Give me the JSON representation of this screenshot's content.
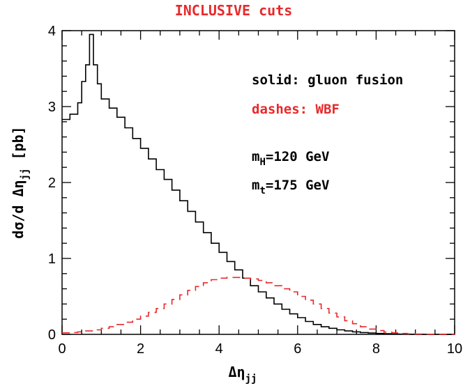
{
  "chart_data": {
    "type": "line",
    "title": "INCLUSIVE cuts",
    "title_color": "#e8292b",
    "xlabel": "Δη",
    "xlabel_sub": "jj",
    "ylabel_pre": "dσ/d Δη",
    "ylabel_sub": "jj",
    "ylabel_post": " [pb]",
    "xlim": [
      0,
      10
    ],
    "ylim": [
      0,
      4
    ],
    "xticks": [
      "0",
      "2",
      "4",
      "6",
      "8",
      "10"
    ],
    "yticks": [
      "0",
      "1",
      "2",
      "3",
      "4"
    ],
    "grid": false,
    "series": [
      {
        "name": "gluon fusion",
        "color": "#000000",
        "style": "solid-histogram",
        "x": [
          0.0,
          0.2,
          0.4,
          0.5,
          0.6,
          0.7,
          0.8,
          0.9,
          1.0,
          1.2,
          1.4,
          1.6,
          1.8,
          2.0,
          2.2,
          2.4,
          2.6,
          2.8,
          3.0,
          3.2,
          3.4,
          3.6,
          3.8,
          4.0,
          4.2,
          4.4,
          4.6,
          4.8,
          5.0,
          5.2,
          5.4,
          5.6,
          5.8,
          6.0,
          6.2,
          6.4,
          6.6,
          6.8,
          7.0,
          7.2,
          7.4,
          7.6,
          7.8,
          8.0,
          8.2,
          8.4,
          8.6,
          8.8,
          9.0,
          9.2,
          9.4,
          9.6,
          9.8,
          10.0
        ],
        "y": [
          2.83,
          2.9,
          3.05,
          3.33,
          3.55,
          3.95,
          3.55,
          3.3,
          3.1,
          2.98,
          2.86,
          2.72,
          2.58,
          2.45,
          2.31,
          2.17,
          2.04,
          1.9,
          1.76,
          1.62,
          1.48,
          1.34,
          1.2,
          1.08,
          0.96,
          0.85,
          0.74,
          0.64,
          0.56,
          0.48,
          0.4,
          0.33,
          0.27,
          0.22,
          0.17,
          0.13,
          0.1,
          0.08,
          0.06,
          0.045,
          0.033,
          0.024,
          0.017,
          0.012,
          0.008,
          0.005,
          0.003,
          0.002,
          0.001,
          0.0,
          0.0,
          0.0,
          0.0,
          0.0
        ]
      },
      {
        "name": "WBF",
        "color": "#e8292b",
        "style": "dashed-histogram",
        "x": [
          0.0,
          0.2,
          0.4,
          0.6,
          0.8,
          1.0,
          1.2,
          1.4,
          1.6,
          1.8,
          2.0,
          2.2,
          2.4,
          2.6,
          2.8,
          3.0,
          3.2,
          3.4,
          3.6,
          3.8,
          4.0,
          4.2,
          4.4,
          4.6,
          4.8,
          5.0,
          5.2,
          5.4,
          5.6,
          5.8,
          6.0,
          6.2,
          6.4,
          6.6,
          6.8,
          7.0,
          7.2,
          7.4,
          7.6,
          7.8,
          8.0,
          8.2,
          8.4,
          8.6,
          8.8,
          9.0,
          9.2,
          9.4,
          9.6,
          9.8,
          10.0
        ],
        "y": [
          0.02,
          0.025,
          0.033,
          0.045,
          0.06,
          0.08,
          0.1,
          0.13,
          0.16,
          0.2,
          0.24,
          0.29,
          0.34,
          0.4,
          0.46,
          0.52,
          0.58,
          0.63,
          0.68,
          0.72,
          0.74,
          0.75,
          0.75,
          0.74,
          0.73,
          0.71,
          0.68,
          0.64,
          0.6,
          0.56,
          0.5,
          0.45,
          0.4,
          0.34,
          0.28,
          0.23,
          0.18,
          0.14,
          0.1,
          0.07,
          0.05,
          0.03,
          0.02,
          0.012,
          0.007,
          0.004,
          0.002,
          0.001,
          0.0,
          0.0,
          0.0
        ]
      }
    ],
    "annotations": {
      "solid": "solid: gluon fusion",
      "dashes": "dashes: WBF",
      "mh_pre": "m",
      "mh_sub": "H",
      "mh_post": "=120 GeV",
      "mt_pre": "m",
      "mt_sub": "t",
      "mt_post": "=175 GeV"
    }
  }
}
